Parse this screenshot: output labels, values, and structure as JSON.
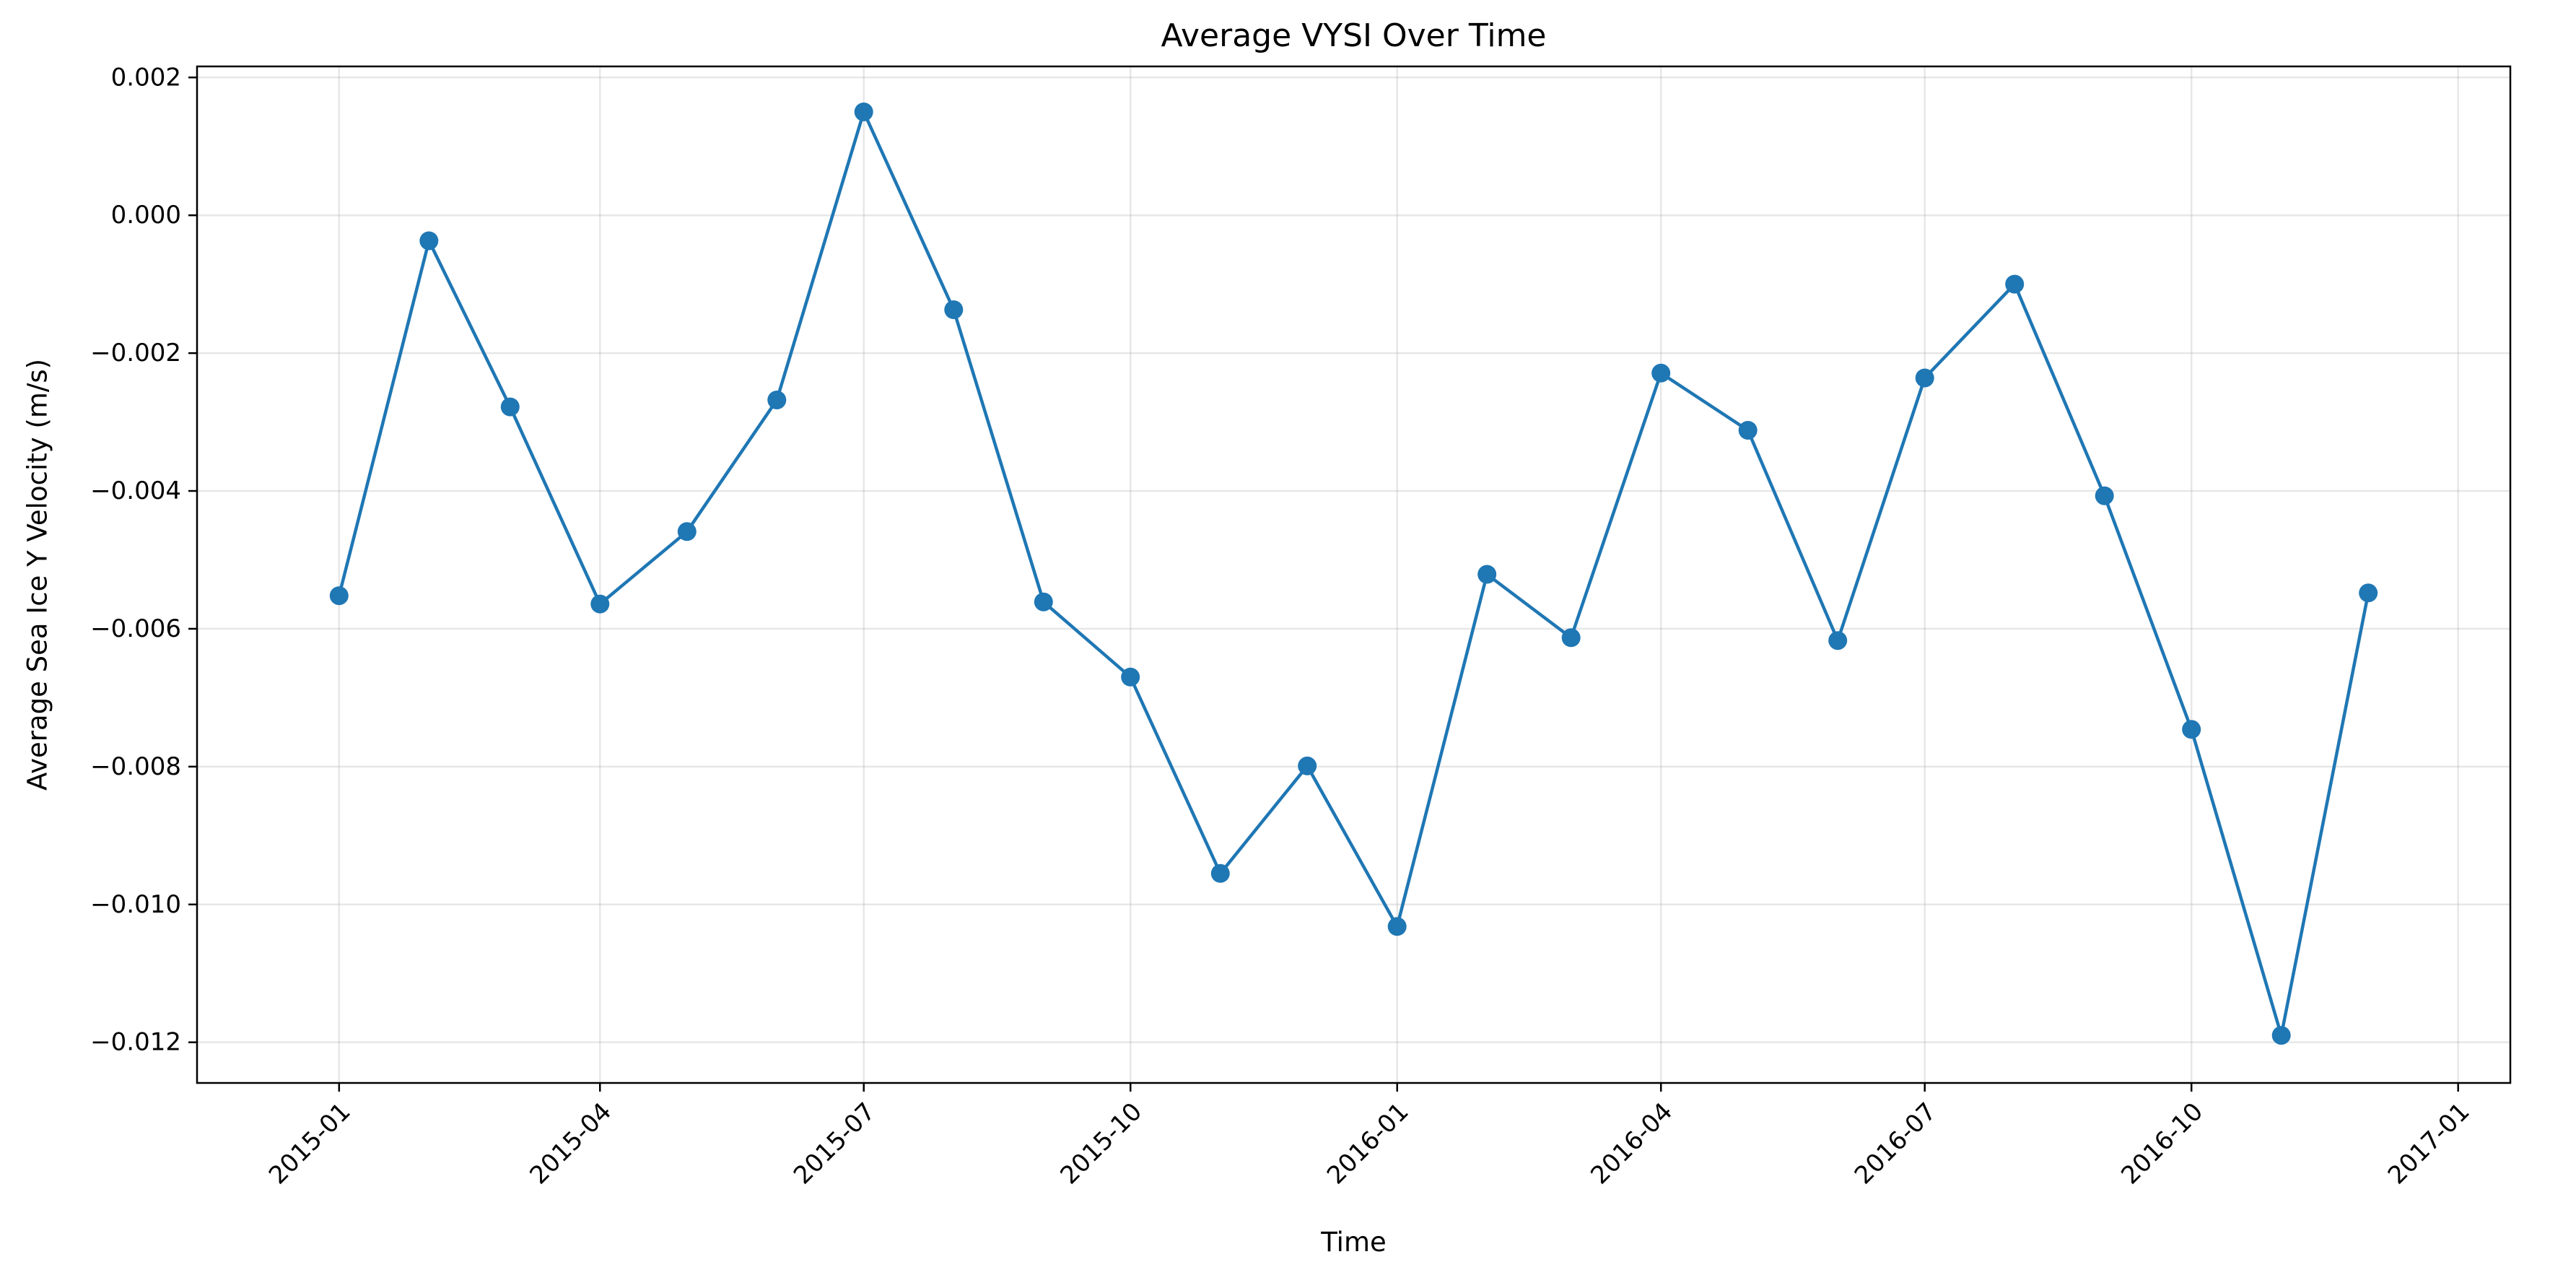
{
  "chart_data": {
    "type": "line",
    "title": "Average VYSI Over Time",
    "xlabel": "Time",
    "ylabel": "Average Sea Ice Y Velocity (m/s)",
    "grid": true,
    "color": "#1f77b4",
    "marker": "circle",
    "x": [
      "2015-01",
      "2015-02",
      "2015-03",
      "2015-04",
      "2015-05",
      "2015-06",
      "2015-07",
      "2015-08",
      "2015-09",
      "2015-10",
      "2015-11",
      "2015-12",
      "2016-01",
      "2016-02",
      "2016-03",
      "2016-04",
      "2016-05",
      "2016-06",
      "2016-07",
      "2016-08",
      "2016-09",
      "2016-10",
      "2016-11",
      "2016-12"
    ],
    "series": [
      {
        "values": [
          -0.00552,
          -0.00037,
          -0.00278,
          -0.00564,
          -0.00459,
          -0.00268,
          0.0015,
          -0.00137,
          -0.00561,
          -0.0067,
          -0.00955,
          -0.00799,
          -0.01032,
          -0.00521,
          -0.00613,
          -0.00229,
          -0.00312,
          -0.00617,
          -0.00236,
          -0.001,
          -0.00407,
          -0.00746,
          -0.0119,
          -0.00548
        ]
      }
    ],
    "xlim": [
      "2014-11-13",
      "2017-01-19"
    ],
    "ylim": [
      -0.01259,
      0.00216
    ],
    "x_ticks": [
      "2015-01",
      "2015-04",
      "2015-07",
      "2015-10",
      "2016-01",
      "2016-04",
      "2016-07",
      "2016-10",
      "2017-01"
    ],
    "y_ticks": [
      0.002,
      0.0,
      -0.002,
      -0.004,
      -0.006,
      -0.008,
      -0.01,
      -0.012
    ],
    "y_tick_labels": [
      "0.002",
      "0.000",
      "−0.002",
      "−0.004",
      "−0.006",
      "−0.008",
      "−0.010",
      "−0.012"
    ]
  }
}
